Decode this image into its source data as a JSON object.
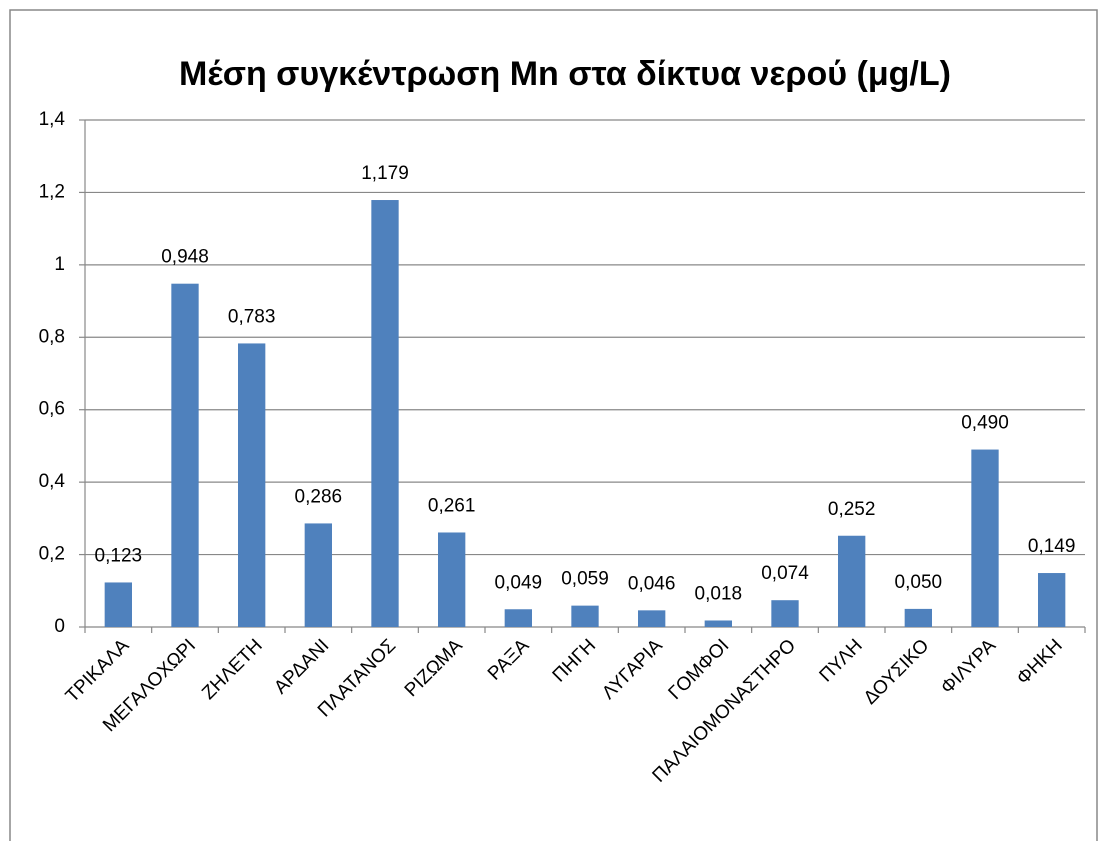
{
  "chart_data": {
    "type": "bar",
    "title": "Μέση συγκέντρωση Mn στα δίκτυα νερού (μg/L)",
    "categories": [
      "ΤΡΙΚΑΛΑ",
      "ΜΕΓΑΛΟΧΩΡΙ",
      "ΖΗΛΕΤΗ",
      "ΑΡΔΑΝΙ",
      "ΠΛΑΤΑΝΟΣ",
      "ΡΙΖΩΜΑ",
      "ΡΑΞΑ",
      "ΠΗΓΗ",
      "ΛΥΓΑΡΙΑ",
      "ΓΟΜΦΟΙ",
      "ΠΑΛΑΙΟΜΟΝΑΣΤΗΡΟ",
      "ΠΥΛΗ",
      "ΔΟΥΣΙΚΟ",
      "ΦΙΛΥΡΑ",
      "ΦΗΚΗ"
    ],
    "values": [
      0.123,
      0.948,
      0.783,
      0.286,
      1.179,
      0.261,
      0.049,
      0.059,
      0.046,
      0.018,
      0.074,
      0.252,
      0.05,
      0.49,
      0.149
    ],
    "value_labels": [
      "0,123",
      "0,948",
      "0,783",
      "0,286",
      "1,179",
      "0,261",
      "0,049",
      "0,059",
      "0,046",
      "0,018",
      "0,074",
      "0,252",
      "0,050",
      "0,490",
      "0,149"
    ],
    "color": "#4f81bd",
    "ylim": [
      0,
      1.4
    ],
    "yticks": [
      0,
      {
        "value": 0.2,
        "label": "0,2"
      },
      {
        "value": 0.4,
        "label": "0,4"
      },
      {
        "value": 0.6,
        "label": "0,6"
      },
      {
        "value": 0.8,
        "label": "0,8"
      },
      1,
      {
        "value": 1.2,
        "label": "1,2"
      },
      {
        "value": 1.4,
        "label": "1,4"
      }
    ],
    "grid": true
  }
}
